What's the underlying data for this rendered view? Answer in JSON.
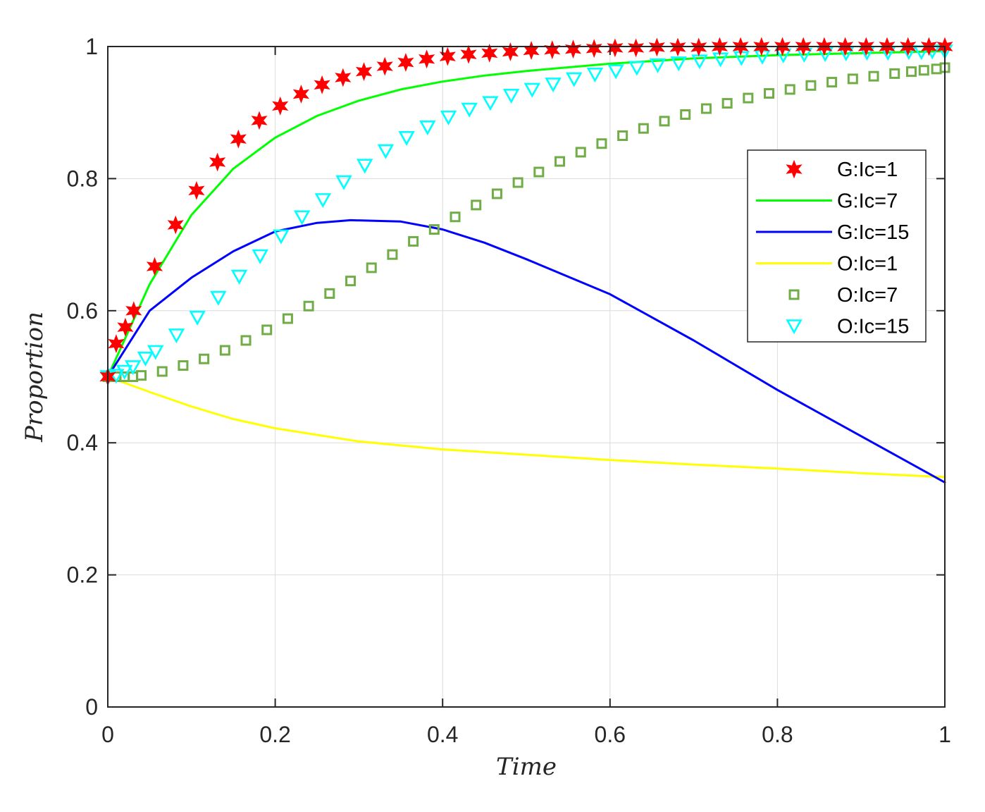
{
  "chart_data": {
    "type": "line",
    "title": "",
    "xlabel": "Time",
    "ylabel": "Proportion",
    "xlim": [
      0,
      1
    ],
    "ylim": [
      0,
      1
    ],
    "xticks": [
      "0",
      "0.2",
      "0.4",
      "0.6",
      "0.8",
      "1"
    ],
    "yticks": [
      "0",
      "0.2",
      "0.4",
      "0.6",
      "0.8",
      "1"
    ],
    "grid": true,
    "legend_position": "right",
    "series": [
      {
        "name": "G:Ic=1",
        "marker": "star",
        "line": "none",
        "color": "#ff0000",
        "x": [
          0,
          0.01,
          0.021,
          0.031,
          0.056,
          0.081,
          0.106,
          0.131,
          0.156,
          0.181,
          0.206,
          0.231,
          0.256,
          0.281,
          0.306,
          0.331,
          0.356,
          0.381,
          0.406,
          0.431,
          0.456,
          0.481,
          0.506,
          0.531,
          0.556,
          0.581,
          0.606,
          0.631,
          0.656,
          0.681,
          0.706,
          0.731,
          0.756,
          0.781,
          0.806,
          0.831,
          0.856,
          0.881,
          0.906,
          0.931,
          0.956,
          0.981,
          1.0
        ],
        "y": [
          0.5,
          0.55,
          0.575,
          0.6,
          0.667,
          0.73,
          0.782,
          0.825,
          0.86,
          0.888,
          0.91,
          0.928,
          0.942,
          0.953,
          0.962,
          0.97,
          0.976,
          0.981,
          0.985,
          0.988,
          0.99,
          0.992,
          0.994,
          0.995,
          0.996,
          0.997,
          0.998,
          0.998,
          0.999,
          0.999,
          0.999,
          1.0,
          1.0,
          1.0,
          1.0,
          1.0,
          1.0,
          1.0,
          1.0,
          1.0,
          1.0,
          1.0,
          1.0
        ]
      },
      {
        "name": "G:Ic=7",
        "marker": "none",
        "line": "solid",
        "color": "#00ff00",
        "x": [
          0,
          0.05,
          0.1,
          0.15,
          0.2,
          0.25,
          0.3,
          0.35,
          0.4,
          0.45,
          0.5,
          0.6,
          0.7,
          0.8,
          0.9,
          1.0
        ],
        "y": [
          0.5,
          0.64,
          0.745,
          0.815,
          0.862,
          0.895,
          0.918,
          0.935,
          0.947,
          0.956,
          0.963,
          0.974,
          0.982,
          0.987,
          0.99,
          0.993
        ]
      },
      {
        "name": "G:Ic=15",
        "marker": "none",
        "line": "solid",
        "color": "#0000ff",
        "x": [
          0,
          0.05,
          0.1,
          0.15,
          0.2,
          0.25,
          0.29,
          0.35,
          0.4,
          0.45,
          0.5,
          0.6,
          0.7,
          0.8,
          0.9,
          1.0
        ],
        "y": [
          0.5,
          0.6,
          0.65,
          0.69,
          0.72,
          0.733,
          0.737,
          0.735,
          0.723,
          0.703,
          0.678,
          0.625,
          0.555,
          0.48,
          0.41,
          0.34
        ]
      },
      {
        "name": "O:Ic=1",
        "marker": "none",
        "line": "solid",
        "color": "#ffff00",
        "x": [
          0,
          0.05,
          0.1,
          0.15,
          0.2,
          0.3,
          0.4,
          0.5,
          0.6,
          0.7,
          0.8,
          0.9,
          1.0
        ],
        "y": [
          0.5,
          0.477,
          0.455,
          0.436,
          0.422,
          0.402,
          0.39,
          0.382,
          0.374,
          0.367,
          0.361,
          0.354,
          0.348
        ]
      },
      {
        "name": "O:Ic=7",
        "marker": "square",
        "line": "none",
        "color": "#70ad47",
        "x": [
          0,
          0.01,
          0.02,
          0.03,
          0.04,
          0.065,
          0.09,
          0.115,
          0.14,
          0.165,
          0.19,
          0.215,
          0.24,
          0.265,
          0.29,
          0.315,
          0.34,
          0.365,
          0.39,
          0.415,
          0.44,
          0.465,
          0.49,
          0.515,
          0.54,
          0.565,
          0.59,
          0.615,
          0.64,
          0.665,
          0.69,
          0.715,
          0.74,
          0.765,
          0.79,
          0.815,
          0.84,
          0.865,
          0.89,
          0.915,
          0.94,
          0.96,
          0.975,
          0.99,
          1.0
        ],
        "y": [
          0.5,
          0.5,
          0.5,
          0.5,
          0.502,
          0.508,
          0.517,
          0.527,
          0.54,
          0.555,
          0.571,
          0.588,
          0.607,
          0.626,
          0.645,
          0.665,
          0.685,
          0.705,
          0.723,
          0.742,
          0.76,
          0.777,
          0.794,
          0.81,
          0.826,
          0.84,
          0.853,
          0.865,
          0.876,
          0.887,
          0.897,
          0.906,
          0.914,
          0.922,
          0.929,
          0.935,
          0.941,
          0.946,
          0.951,
          0.955,
          0.959,
          0.962,
          0.964,
          0.966,
          0.968
        ]
      },
      {
        "name": "O:Ic=15",
        "marker": "triangle-down",
        "line": "none",
        "color": "#00ffff",
        "x": [
          0,
          0.01,
          0.02,
          0.03,
          0.045,
          0.057,
          0.082,
          0.107,
          0.132,
          0.157,
          0.182,
          0.207,
          0.232,
          0.257,
          0.282,
          0.307,
          0.332,
          0.357,
          0.382,
          0.407,
          0.432,
          0.457,
          0.482,
          0.507,
          0.532,
          0.557,
          0.582,
          0.607,
          0.632,
          0.657,
          0.682,
          0.707,
          0.732,
          0.757,
          0.782,
          0.807,
          0.832,
          0.857,
          0.882,
          0.907,
          0.932,
          0.957,
          0.972,
          0.985,
          1.0
        ],
        "y": [
          0.5,
          0.502,
          0.508,
          0.515,
          0.528,
          0.538,
          0.563,
          0.59,
          0.62,
          0.652,
          0.683,
          0.713,
          0.742,
          0.768,
          0.795,
          0.82,
          0.842,
          0.862,
          0.878,
          0.893,
          0.905,
          0.915,
          0.926,
          0.935,
          0.943,
          0.951,
          0.958,
          0.963,
          0.968,
          0.972,
          0.975,
          0.978,
          0.981,
          0.983,
          0.985,
          0.987,
          0.988,
          0.989,
          0.99,
          0.991,
          0.991,
          0.992,
          0.992,
          0.993,
          0.993
        ]
      }
    ]
  }
}
